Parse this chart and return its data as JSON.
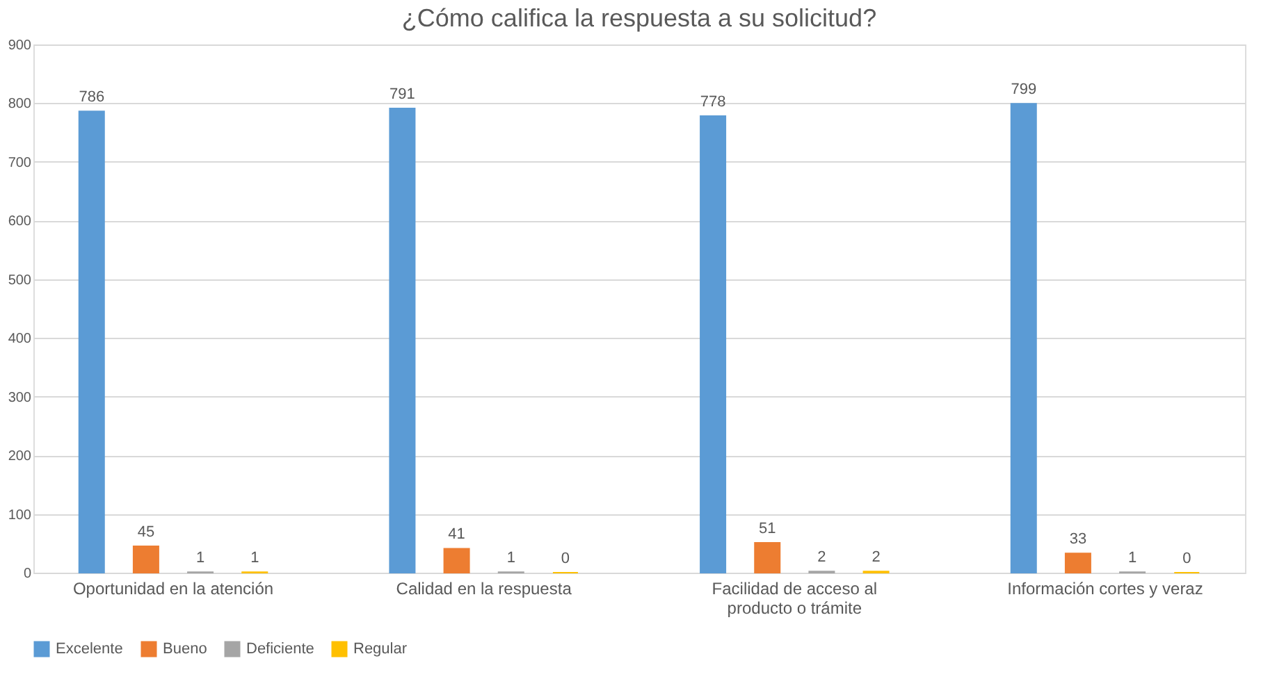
{
  "chart_data": {
    "type": "bar",
    "title": "¿Cómo califica la respuesta a su solicitud?",
    "categories": [
      "Oportunidad en la atención",
      "Calidad en la respuesta",
      "Facilidad de acceso al producto o trámite",
      "Información cortes y veraz"
    ],
    "series": [
      {
        "name": "Excelente",
        "color": "#5b9bd5",
        "values": [
          786,
          791,
          778,
          799
        ]
      },
      {
        "name": "Bueno",
        "color": "#ed7d31",
        "values": [
          45,
          41,
          51,
          33
        ]
      },
      {
        "name": "Deficiente",
        "color": "#a5a5a5",
        "values": [
          1,
          1,
          2,
          1
        ]
      },
      {
        "name": "Regular",
        "color": "#ffc000",
        "values": [
          1,
          0,
          2,
          0
        ]
      }
    ],
    "ylim": [
      0,
      900
    ],
    "yticks": [
      0,
      100,
      200,
      300,
      400,
      500,
      600,
      700,
      800,
      900
    ],
    "grid": "y",
    "legend": "bottom",
    "data_labels": true
  }
}
